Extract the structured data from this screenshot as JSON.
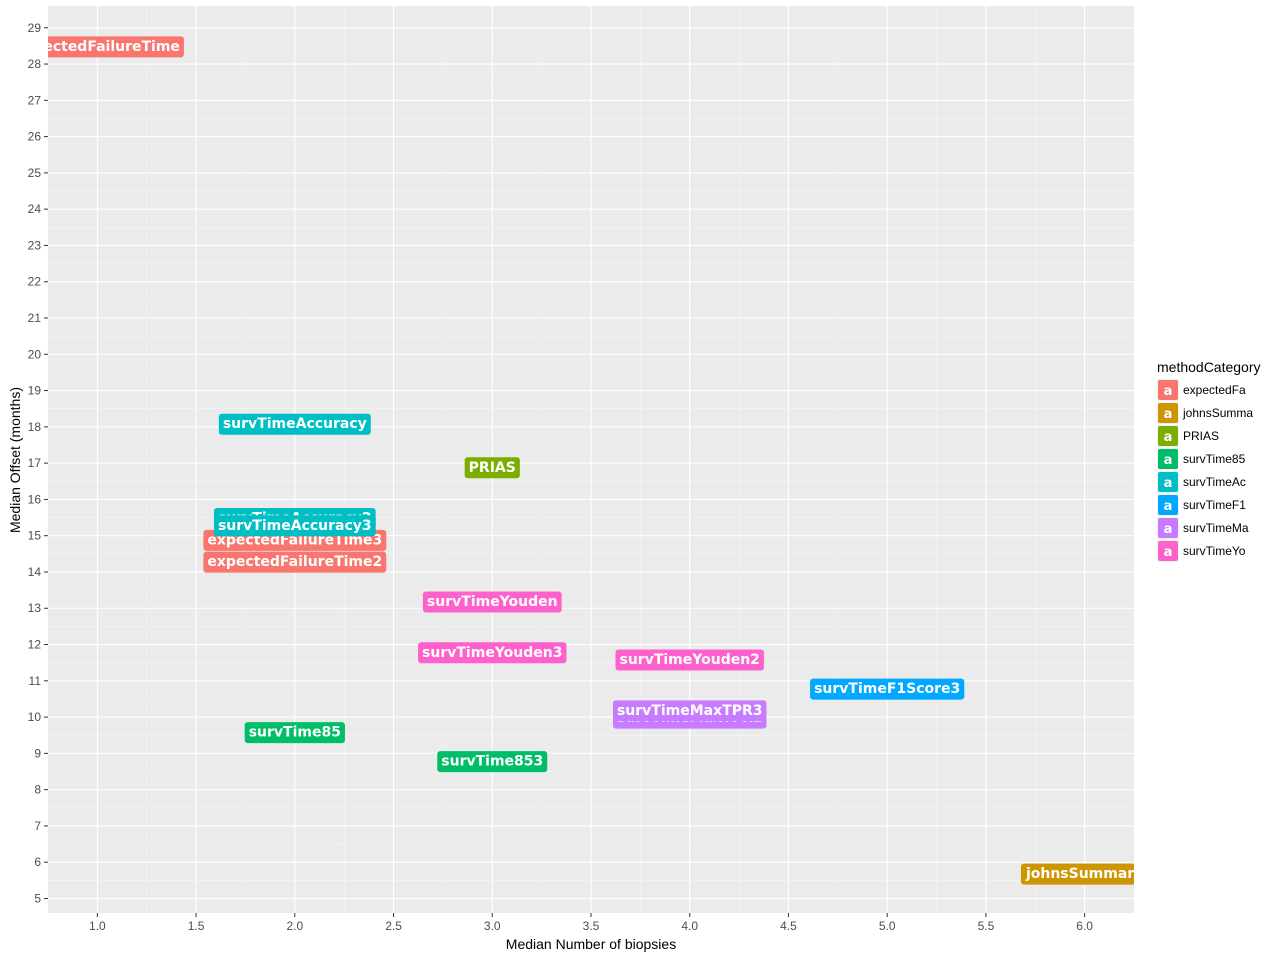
{
  "chart_data": {
    "type": "scatter",
    "xlabel": "Median Number of biopsies",
    "ylabel": "Median Offset (months)",
    "xlim": [
      0.75,
      6.25
    ],
    "ylim": [
      4.6,
      29.6
    ],
    "xticks": [
      1.0,
      1.5,
      2.0,
      2.5,
      3.0,
      3.5,
      4.0,
      4.5,
      5.0,
      5.5,
      6.0
    ],
    "xtick_labels": [
      "1.0",
      "1.5",
      "2.0",
      "2.5",
      "3.0",
      "3.5",
      "4.0",
      "4.5",
      "5.0",
      "5.5",
      "6.0"
    ],
    "yticks": [
      5,
      6,
      7,
      8,
      9,
      10,
      11,
      12,
      13,
      14,
      15,
      16,
      17,
      18,
      19,
      20,
      21,
      22,
      23,
      24,
      25,
      26,
      27,
      28,
      29
    ],
    "grid": true,
    "legend": {
      "title": "methodCategory",
      "placement": "right",
      "key_glyph": "a",
      "entries": [
        {
          "label": "expectedFa",
          "color": "#F8766D"
        },
        {
          "label": "johnsSumma",
          "color": "#CD9600"
        },
        {
          "label": "PRIAS",
          "color": "#7CAE00"
        },
        {
          "label": "survTime85",
          "color": "#00BE67"
        },
        {
          "label": "survTimeAc",
          "color": "#00BFC4"
        },
        {
          "label": "survTimeF1",
          "color": "#00A9FF"
        },
        {
          "label": "survTimeMa",
          "color": "#C77CFF"
        },
        {
          "label": "survTimeYo",
          "color": "#FF61CC"
        }
      ]
    },
    "points": [
      {
        "label": "expectedFailureTime",
        "x": 1.0,
        "y": 28.5,
        "category": "expectedFa"
      },
      {
        "label": "expectedFailureTime3",
        "x": 2.0,
        "y": 14.9,
        "category": "expectedFa"
      },
      {
        "label": "expectedFailureTime2",
        "x": 2.0,
        "y": 14.3,
        "category": "expectedFa"
      },
      {
        "label": "johnsSummary",
        "x": 6.0,
        "y": 5.7,
        "category": "johnsSumma"
      },
      {
        "label": "PRIAS",
        "x": 3.0,
        "y": 16.9,
        "category": "PRIAS"
      },
      {
        "label": "survTime85",
        "x": 2.0,
        "y": 9.6,
        "category": "survTime85"
      },
      {
        "label": "survTime853",
        "x": 3.0,
        "y": 8.8,
        "category": "survTime85"
      },
      {
        "label": "survTimeAccuracy",
        "x": 2.0,
        "y": 18.1,
        "category": "survTimeAc"
      },
      {
        "label": "survTimeAccuracy2",
        "x": 2.0,
        "y": 15.5,
        "category": "survTimeAc"
      },
      {
        "label": "survTimeAccuracy3",
        "x": 2.0,
        "y": 15.3,
        "category": "survTimeAc"
      },
      {
        "label": "survTimeF1Score3",
        "x": 5.0,
        "y": 10.8,
        "category": "survTimeF1"
      },
      {
        "label": "survTimeMaxTPR2",
        "x": 4.0,
        "y": 10.0,
        "category": "survTimeMa"
      },
      {
        "label": "survTimeMaxTPR3",
        "x": 4.0,
        "y": 10.2,
        "category": "survTimeMa"
      },
      {
        "label": "survTimeYouden",
        "x": 3.0,
        "y": 13.2,
        "category": "survTimeYo"
      },
      {
        "label": "survTimeYouden3",
        "x": 3.0,
        "y": 11.8,
        "category": "survTimeYo"
      },
      {
        "label": "survTimeYouden2",
        "x": 4.0,
        "y": 11.6,
        "category": "survTimeYo"
      }
    ]
  }
}
